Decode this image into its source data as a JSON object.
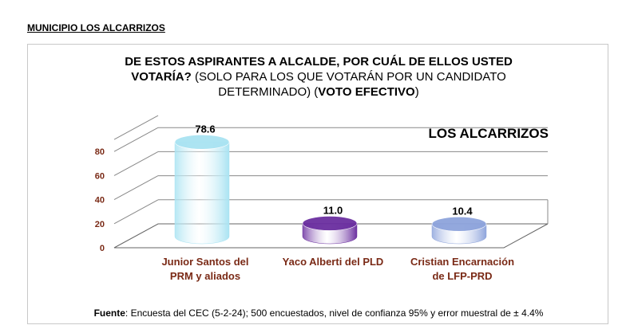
{
  "header": {
    "label": "MUNICIPIO LOS ALCARRIZOS"
  },
  "question": {
    "line1": "DE ESTOS ASPIRANTES A ALCALDE, POR CUÁL DE ELLOS USTED",
    "line2_bold": "VOTARÍA?",
    "line2_rest": " (SOLO PARA LOS QUE VOTARÁN POR UN CANDIDATO",
    "line3_a": "DETERMINADO) (",
    "line3_bold": "VOTO EFECTIVO",
    "line3_b": ")"
  },
  "source": {
    "label": "Fuente",
    "text": ": Encuesta del CEC (5-2-24); 500 encuestados, nivel de confianza 95% y error muestral de ± 4.4%"
  },
  "chart_data": {
    "type": "bar",
    "title": "LOS ALCARRIZOS",
    "categories": [
      "Junior Santos del PRM y aliados",
      "Yaco Alberti del PLD",
      "Cristian Encarnación de LFP-PRD"
    ],
    "category_lines": [
      [
        "Junior Santos del",
        "PRM y aliados"
      ],
      [
        "Yaco Alberti del PLD"
      ],
      [
        "Cristian Encarnación",
        "de LFP-PRD"
      ]
    ],
    "values": [
      78.6,
      11.0,
      10.4
    ],
    "value_labels": [
      "78.6",
      "11.0",
      "10.4"
    ],
    "yticks": [
      0,
      20,
      40,
      60,
      80
    ],
    "ylim": [
      0,
      100
    ],
    "grid": true,
    "colors": [
      "#a9e3f2",
      "#6b2fa0",
      "#8ea4dc"
    ],
    "label_color": "#7a2a16"
  }
}
